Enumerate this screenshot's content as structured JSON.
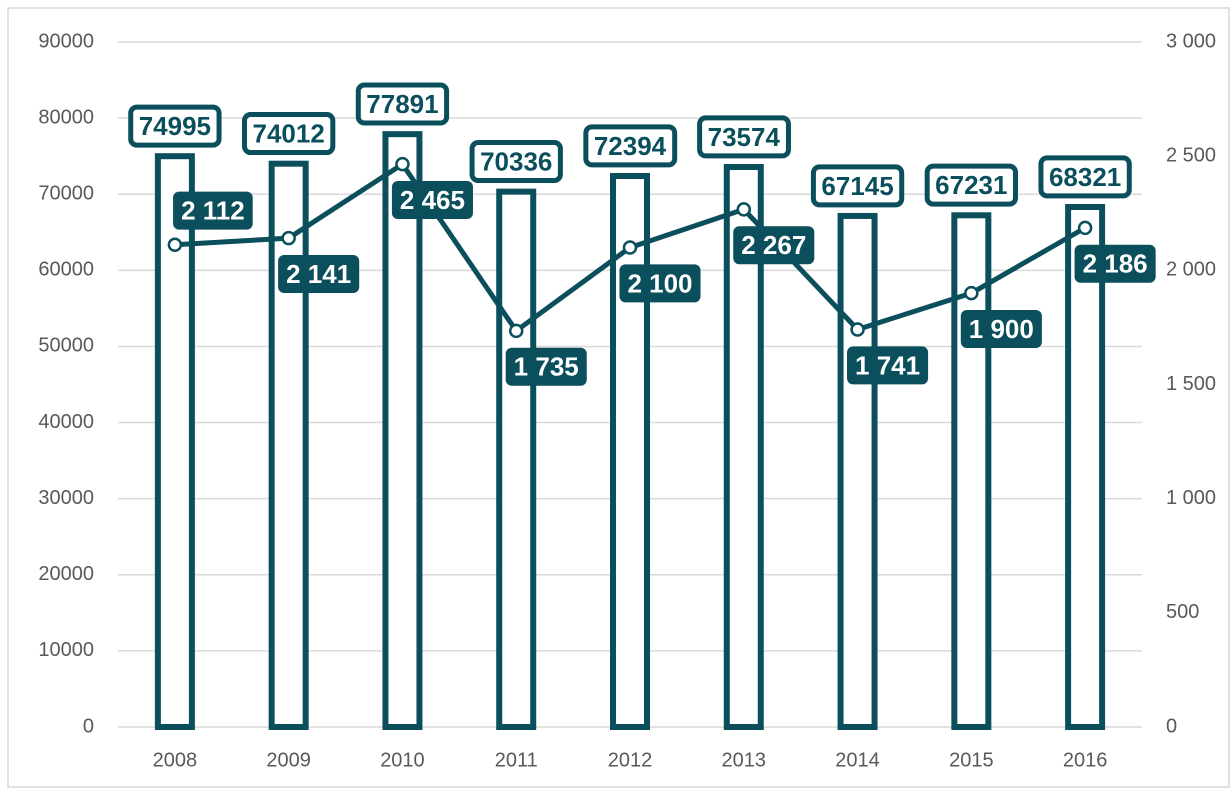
{
  "chart_data": {
    "type": "bar",
    "categories": [
      "2008",
      "2009",
      "2010",
      "2011",
      "2012",
      "2013",
      "2014",
      "2015",
      "2016"
    ],
    "series": [
      {
        "type": "bar",
        "color": "#0b4f5c",
        "values": [
          74995,
          74012,
          77891,
          70336,
          72394,
          73574,
          67145,
          67231,
          68321
        ]
      },
      {
        "type": "line",
        "axis": "y2",
        "color": "#0b4f5c",
        "values": [
          2112,
          2141,
          2465,
          1735,
          2100,
          2267,
          1741,
          1900,
          2186
        ],
        "value_labels": [
          "2 112",
          "2 141",
          "2 465",
          "1 735",
          "2 100",
          "2 267",
          "1 741",
          "1 900",
          "2 186"
        ]
      }
    ],
    "ylim": [
      0,
      90000
    ],
    "yticks": [
      0,
      10000,
      20000,
      30000,
      40000,
      50000,
      60000,
      70000,
      80000,
      90000
    ],
    "y2lim": [
      0,
      3000
    ],
    "y2ticks": [
      0,
      500,
      {
        "value": 1000,
        "label": "1 000"
      },
      {
        "value": 1500,
        "label": "1 500"
      },
      {
        "value": 2000,
        "label": "2 000"
      },
      {
        "value": 2500,
        "label": "2 500"
      },
      {
        "value": 3000,
        "label": "3 000"
      }
    ],
    "grid": true
  }
}
